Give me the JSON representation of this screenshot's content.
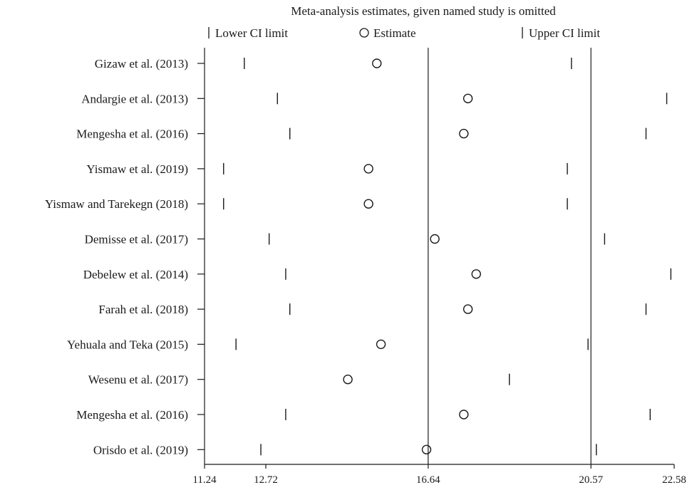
{
  "chart_data": {
    "type": "scatter",
    "title": "Meta-analysis estimates, given named study is omitted",
    "legend": [
      {
        "symbol": "|",
        "label": "Lower CI limit"
      },
      {
        "symbol": "○",
        "label": "Estimate"
      },
      {
        "symbol": "|",
        "label": "Upper CI limit"
      }
    ],
    "legend_position": "top",
    "xlim": [
      11.24,
      22.58
    ],
    "x_ticks": [
      11.24,
      12.72,
      16.64,
      20.57,
      22.58
    ],
    "x_tick_labels": [
      "11.24",
      "12.72",
      "16.64",
      "20.57",
      "22.58"
    ],
    "reference_lines": [
      16.64,
      20.57
    ],
    "grid": false,
    "studies": [
      {
        "label": "Gizaw et al. (2013)",
        "lower": 12.2,
        "estimate": 15.4,
        "upper": 20.1
      },
      {
        "label": "Andargie et al. (2013)",
        "lower": 13.0,
        "estimate": 17.6,
        "upper": 22.4
      },
      {
        "label": "Mengesha et al. (2016)",
        "lower": 13.3,
        "estimate": 17.5,
        "upper": 21.9
      },
      {
        "label": "Yismaw et al. (2019)",
        "lower": 11.7,
        "estimate": 15.2,
        "upper": 20.0
      },
      {
        "label": "Yismaw and Tarekegn (2018)",
        "lower": 11.7,
        "estimate": 15.2,
        "upper": 20.0
      },
      {
        "label": "Demisse et al. (2017)",
        "lower": 12.8,
        "estimate": 16.8,
        "upper": 20.9
      },
      {
        "label": "Debelew et al. (2014)",
        "lower": 13.2,
        "estimate": 17.8,
        "upper": 22.5
      },
      {
        "label": "Farah et al. (2018)",
        "lower": 13.3,
        "estimate": 17.6,
        "upper": 21.9
      },
      {
        "label": "Yehuala and Teka (2015)",
        "lower": 12.0,
        "estimate": 15.5,
        "upper": 20.5
      },
      {
        "label": "Wesenu et al. (2017)",
        "lower": null,
        "estimate": 14.7,
        "upper": 18.6
      },
      {
        "label": "Mengesha et al. (2016)",
        "lower": 13.2,
        "estimate": 17.5,
        "upper": 22.0
      },
      {
        "label": "Orisdo et al. (2019)",
        "lower": 12.6,
        "estimate": 16.6,
        "upper": 20.7
      }
    ]
  }
}
